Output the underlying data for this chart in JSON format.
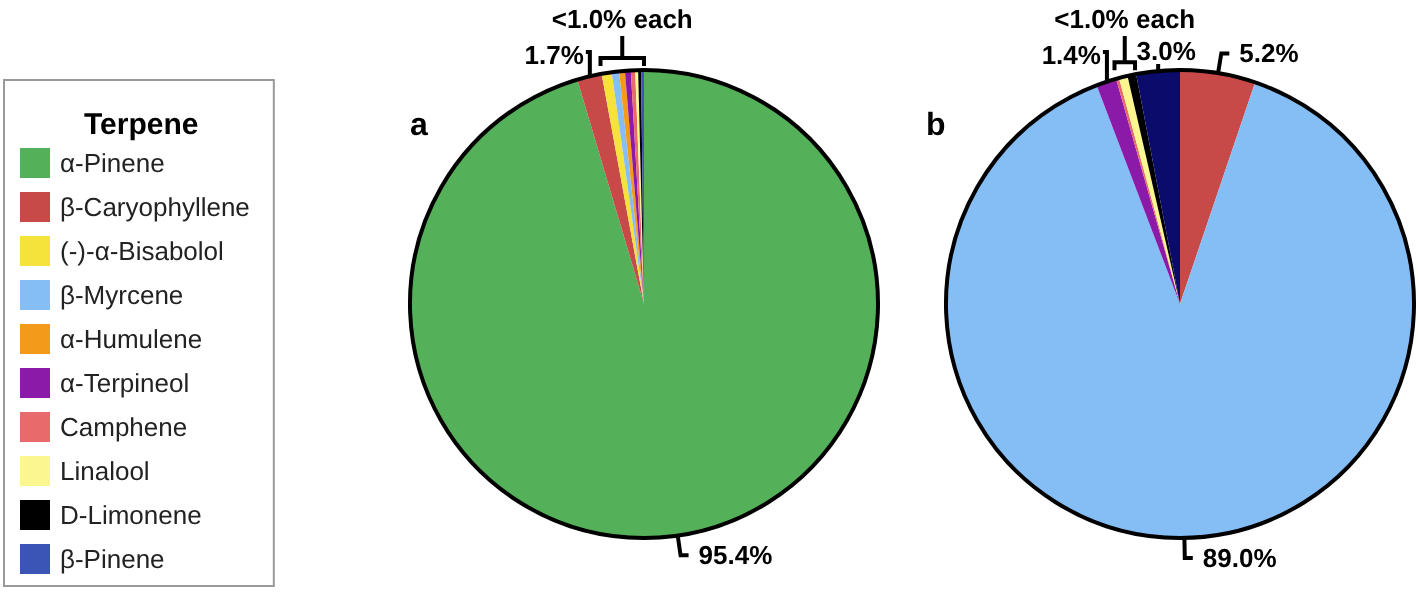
{
  "chart_data": {
    "type": "pie",
    "legend_title": "Terpene",
    "legend": "left",
    "categories": [
      "α-Pinene",
      "β-Caryophyllene",
      "(-)-α-Bisabolol",
      "β-Myrcene",
      "α-Humulene",
      "α-Terpineol",
      "Camphene",
      "Linalool",
      "D-Limonene",
      "β-Pinene"
    ],
    "series": [
      {
        "name": "a",
        "values": [
          95.4,
          1.7,
          0.7,
          0.5,
          0.4,
          0.4,
          0.3,
          0.2,
          0.2,
          0.2
        ],
        "colors": [
          "#55b05a",
          "#c84a48",
          "#f5e23a",
          "#85bdf5",
          "#f39a1a",
          "#8c1aa8",
          "#e86a6a",
          "#fbf690",
          "#000000",
          "#3a55b5"
        ],
        "value_labels": [
          "95.4%",
          "1.7%",
          null,
          null,
          null,
          null,
          null,
          null,
          null,
          null
        ]
      },
      {
        "name": "b",
        "values": [
          null,
          5.2,
          null,
          89.0,
          null,
          1.4,
          0.2,
          0.6,
          0.6,
          3.0
        ],
        "colors": [
          null,
          "#c84a48",
          null,
          "#85bdf5",
          null,
          "#8c1aa8",
          "#e86a6a",
          "#fbf690",
          "#000000",
          "#0b0b6b"
        ],
        "value_labels": [
          null,
          "5.2%",
          null,
          "89.0%",
          null,
          "1.4%",
          null,
          null,
          null,
          "3.0%"
        ]
      }
    ],
    "annotations": [
      "<1.0% each",
      "<1.0% each"
    ]
  }
}
